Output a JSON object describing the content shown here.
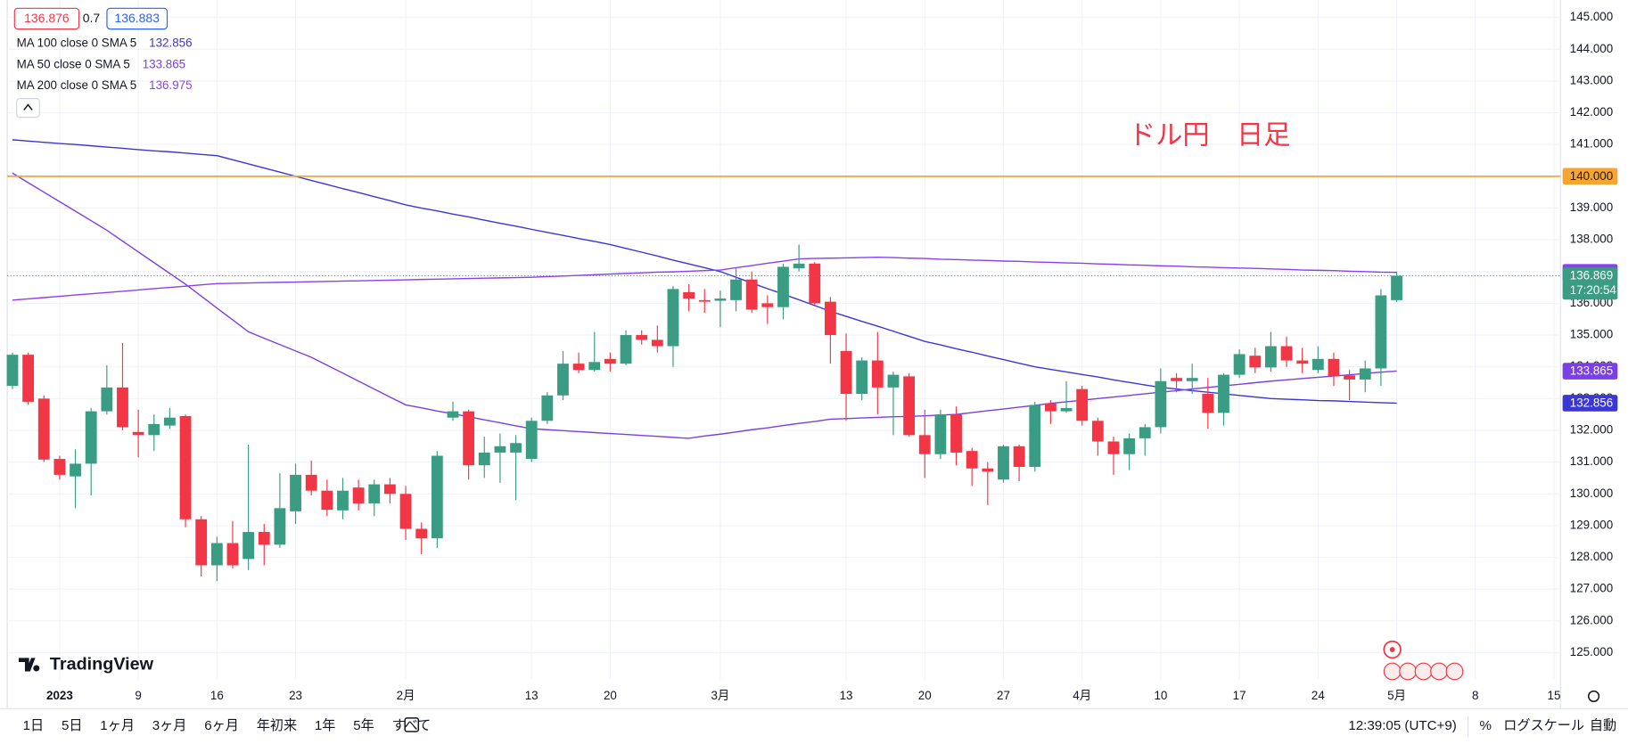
{
  "chart_data": {
    "type": "candlestick",
    "title": "ドル円　日足",
    "quote": {
      "bid": "136.876",
      "spread": "0.7",
      "ask": "136.883"
    },
    "categories": [
      null,
      null,
      null,
      "2023",
      null,
      null,
      null,
      null,
      "9",
      null,
      null,
      null,
      null,
      "16",
      null,
      null,
      null,
      null,
      "23",
      null,
      null,
      null,
      null,
      null,
      null,
      "2月",
      null,
      null,
      null,
      null,
      null,
      null,
      null,
      "13",
      null,
      null,
      null,
      null,
      "20",
      null,
      null,
      null,
      null,
      null,
      null,
      "3月",
      null,
      null,
      null,
      null,
      null,
      null,
      null,
      "13",
      null,
      null,
      null,
      null,
      "20",
      null,
      null,
      null,
      null,
      "27",
      null,
      null,
      null,
      null,
      "4月",
      null,
      null,
      null,
      null,
      "10",
      null,
      null,
      null,
      null,
      "17",
      null,
      null,
      null,
      null,
      "24",
      null,
      null,
      null,
      null,
      "5月",
      null,
      null,
      null,
      null,
      "8",
      null,
      null,
      null,
      null,
      "15"
    ],
    "open": [
      133.4,
      134.38,
      133.0,
      131.1,
      130.55,
      130.95,
      132.6,
      133.35,
      131.95,
      131.85,
      132.15,
      132.45,
      129.2,
      127.75,
      128.45,
      127.95,
      128.8,
      128.4,
      129.45,
      130.6,
      130.1,
      129.48,
      130.2,
      129.7,
      130.3,
      130.0,
      128.9,
      128.6,
      132.4,
      132.6,
      130.9,
      131.3,
      131.3,
      131.1,
      132.3,
      133.1,
      134.1,
      133.9,
      134.25,
      134.1,
      135.0,
      134.85,
      134.65,
      136.35,
      136.1,
      136.08,
      136.1,
      136.75,
      136.0,
      135.88,
      137.1,
      137.25,
      136.05,
      134.5,
      133.15,
      134.2,
      133.35,
      133.7,
      131.85,
      131.25,
      132.5,
      131.35,
      130.8,
      130.45,
      131.5,
      130.85,
      132.85,
      132.6,
      133.3,
      132.3,
      131.65,
      131.25,
      131.75,
      132.1,
      133.65,
      133.55,
      133.15,
      132.55,
      133.75,
      134.35,
      133.98,
      134.65,
      134.2,
      133.9,
      134.25,
      133.73,
      133.6,
      133.95,
      136.1,
      null,
      null,
      null,
      null,
      null,
      null,
      null,
      null,
      null,
      null
    ],
    "high": [
      134.45,
      134.45,
      133.1,
      131.2,
      131.4,
      132.7,
      134.05,
      134.75,
      132.65,
      132.5,
      132.7,
      132.5,
      129.3,
      128.65,
      129.15,
      131.55,
      129.05,
      130.65,
      130.95,
      131.05,
      130.45,
      130.5,
      130.45,
      130.45,
      130.5,
      130.25,
      129.1,
      131.35,
      132.9,
      132.65,
      131.8,
      131.9,
      131.85,
      132.4,
      133.2,
      134.5,
      134.45,
      135.1,
      134.45,
      135.15,
      135.15,
      135.3,
      136.55,
      136.6,
      136.45,
      136.4,
      137.1,
      137.0,
      136.25,
      137.25,
      137.85,
      137.3,
      136.2,
      135.05,
      134.3,
      135.1,
      133.85,
      133.8,
      132.65,
      132.65,
      132.75,
      131.45,
      131.0,
      131.55,
      131.55,
      132.9,
      132.95,
      133.55,
      133.4,
      132.4,
      131.8,
      131.9,
      132.2,
      133.95,
      133.8,
      134.1,
      133.65,
      133.8,
      134.55,
      134.6,
      135.1,
      134.95,
      134.6,
      134.65,
      134.45,
      133.9,
      134.2,
      136.45,
      137.0,
      null,
      null,
      null,
      null,
      null,
      null,
      null,
      null,
      null,
      null
    ],
    "low": [
      133.3,
      132.8,
      131.0,
      130.45,
      129.55,
      129.95,
      132.5,
      132.0,
      131.15,
      131.35,
      132.05,
      128.95,
      127.4,
      127.25,
      127.65,
      127.6,
      127.75,
      128.3,
      129.05,
      129.95,
      129.3,
      129.2,
      129.48,
      129.3,
      129.7,
      128.55,
      128.1,
      128.3,
      132.3,
      130.45,
      130.5,
      130.35,
      129.8,
      131.0,
      132.2,
      132.95,
      133.8,
      133.85,
      133.85,
      134.05,
      134.7,
      134.45,
      134.0,
      135.75,
      135.7,
      135.25,
      135.75,
      135.7,
      135.35,
      135.5,
      137.0,
      135.9,
      134.1,
      132.3,
      132.95,
      132.5,
      131.85,
      131.8,
      130.5,
      131.1,
      130.9,
      130.25,
      129.65,
      130.35,
      130.4,
      130.7,
      132.2,
      132.55,
      132.15,
      131.2,
      130.6,
      130.75,
      131.2,
      131.9,
      133.2,
      133.15,
      132.05,
      132.15,
      133.65,
      133.8,
      133.85,
      134.0,
      133.8,
      133.8,
      133.4,
      132.95,
      133.2,
      133.4,
      136.05,
      null,
      null,
      null,
      null,
      null,
      null,
      null,
      null,
      null,
      null
    ],
    "close": [
      134.38,
      132.9,
      131.08,
      130.6,
      130.95,
      132.6,
      133.35,
      132.1,
      131.85,
      132.2,
      132.4,
      129.2,
      127.75,
      128.45,
      127.75,
      128.8,
      128.4,
      129.55,
      130.6,
      130.1,
      129.5,
      130.1,
      129.7,
      130.3,
      130.0,
      128.9,
      128.6,
      131.2,
      132.6,
      130.9,
      131.3,
      131.5,
      131.6,
      132.3,
      133.1,
      134.1,
      133.9,
      134.15,
      134.1,
      135.0,
      134.85,
      134.65,
      136.45,
      136.15,
      136.05,
      136.15,
      136.75,
      135.8,
      135.88,
      137.15,
      137.25,
      136.0,
      135.0,
      133.15,
      134.2,
      133.35,
      133.75,
      131.85,
      131.25,
      132.5,
      131.3,
      130.8,
      130.7,
      131.5,
      130.85,
      132.8,
      132.6,
      132.7,
      132.3,
      131.65,
      131.25,
      131.75,
      132.1,
      133.55,
      133.55,
      133.65,
      132.55,
      133.75,
      134.4,
      133.98,
      134.65,
      134.2,
      134.1,
      134.25,
      133.7,
      133.6,
      133.95,
      136.25,
      136.869,
      null,
      null,
      null,
      null,
      null,
      null,
      null,
      null,
      null,
      null
    ],
    "up_color": "#3a9c82",
    "down_color": "#f23645",
    "series": [
      {
        "name": "MA 100 close 0 SMA 5",
        "color": "#3b36d6",
        "values": [
          141.15,
          141.11,
          141.07,
          141.03,
          141.0,
          140.96,
          140.92,
          140.88,
          140.84,
          140.8,
          140.77,
          140.73,
          140.69,
          140.65,
          140.52,
          140.39,
          140.26,
          140.13,
          140.0,
          139.87,
          139.74,
          139.61,
          139.49,
          139.36,
          139.23,
          139.1,
          139.0,
          138.91,
          138.81,
          138.72,
          138.62,
          138.52,
          138.43,
          138.33,
          138.23,
          138.14,
          138.04,
          137.95,
          137.85,
          137.73,
          137.61,
          137.49,
          137.36,
          137.24,
          137.12,
          137.0,
          136.82,
          136.64,
          136.46,
          136.29,
          136.11,
          135.93,
          135.75,
          135.59,
          135.43,
          135.28,
          135.12,
          134.96,
          134.8,
          134.69,
          134.57,
          134.46,
          134.34,
          134.23,
          134.11,
          134.0,
          133.92,
          133.84,
          133.76,
          133.68,
          133.59,
          133.51,
          133.43,
          133.35,
          133.3,
          133.25,
          133.2,
          133.15,
          133.1,
          133.05,
          133.0,
          132.98,
          132.96,
          132.94,
          132.93,
          132.91,
          132.89,
          132.87,
          132.856,
          null,
          null,
          null,
          null,
          null,
          null,
          null,
          null,
          null,
          null
        ]
      },
      {
        "name": "MA 50 close 0 SMA 5",
        "color": "#7b3fe4",
        "values": [
          140.1,
          139.8,
          139.5,
          139.2,
          138.9,
          138.6,
          138.3,
          137.96,
          137.62,
          137.28,
          136.94,
          136.6,
          136.23,
          135.85,
          135.48,
          135.1,
          134.9,
          134.7,
          134.5,
          134.3,
          134.05,
          133.8,
          133.55,
          133.3,
          133.05,
          132.8,
          132.71,
          132.61,
          132.52,
          132.43,
          132.33,
          132.24,
          132.14,
          132.05,
          132.02,
          131.99,
          131.96,
          131.93,
          131.9,
          131.87,
          131.84,
          131.81,
          131.78,
          131.75,
          131.82,
          131.88,
          131.95,
          132.02,
          132.08,
          132.15,
          132.22,
          132.28,
          132.35,
          132.37,
          132.39,
          132.41,
          132.43,
          132.44,
          132.46,
          132.48,
          132.5,
          132.56,
          132.62,
          132.67,
          132.73,
          132.79,
          132.85,
          132.9,
          132.95,
          133.0,
          133.05,
          133.1,
          133.15,
          133.2,
          133.25,
          133.3,
          133.35,
          133.4,
          133.45,
          133.5,
          133.55,
          133.59,
          133.63,
          133.67,
          133.71,
          133.75,
          133.79,
          133.83,
          133.865,
          null,
          null,
          null,
          null,
          null,
          null,
          null,
          null,
          null,
          null
        ]
      },
      {
        "name": "MA 200 close 0 SMA 5",
        "color": "#8c3ff0",
        "values": [
          136.1,
          136.14,
          136.18,
          136.22,
          136.26,
          136.3,
          136.34,
          136.38,
          136.42,
          136.46,
          136.5,
          136.54,
          136.58,
          136.62,
          136.63,
          136.64,
          136.65,
          136.66,
          136.67,
          136.68,
          136.69,
          136.7,
          136.71,
          136.72,
          136.73,
          136.74,
          136.75,
          136.76,
          136.77,
          136.78,
          136.79,
          136.8,
          136.81,
          136.82,
          136.84,
          136.86,
          136.88,
          136.9,
          136.92,
          136.94,
          136.96,
          136.98,
          136.99,
          137.01,
          137.03,
          137.05,
          137.12,
          137.19,
          137.26,
          137.33,
          137.4,
          137.41,
          137.42,
          137.43,
          137.44,
          137.45,
          137.44,
          137.42,
          137.41,
          137.39,
          137.38,
          137.36,
          137.35,
          137.33,
          137.32,
          137.3,
          137.29,
          137.27,
          137.26,
          137.24,
          137.23,
          137.21,
          137.2,
          137.18,
          137.17,
          137.15,
          137.14,
          137.12,
          137.11,
          137.1,
          137.08,
          137.07,
          137.05,
          137.04,
          137.03,
          137.01,
          137.0,
          136.98,
          136.975,
          null,
          null,
          null,
          null,
          null,
          null,
          null,
          null,
          null,
          null
        ]
      }
    ],
    "hline": {
      "value": 140,
      "label": "140.000",
      "color": "#f7a531"
    },
    "last_price": {
      "value": 136.869,
      "countdown": "17:20:54"
    },
    "ylim": [
      124.15,
      145.55
    ],
    "yticks": [
      {
        "value": 125,
        "label": "125.000"
      },
      {
        "value": 126,
        "label": "126.000"
      },
      {
        "value": 127,
        "label": "127.000"
      },
      {
        "value": 128,
        "label": "128.000"
      },
      {
        "value": 129,
        "label": "129.000"
      },
      {
        "value": 130,
        "label": "130.000"
      },
      {
        "value": 131,
        "label": "131.000"
      },
      {
        "value": 132,
        "label": "132.000"
      },
      {
        "value": 133,
        "label": "133.000"
      },
      {
        "value": 134,
        "label": "134.000"
      },
      {
        "value": 135,
        "label": "135.000"
      },
      {
        "value": 136,
        "label": "136.000"
      },
      {
        "value": 137,
        "label": "137.000"
      },
      {
        "value": 138,
        "label": "138.000"
      },
      {
        "value": 139,
        "label": "139.000"
      },
      {
        "value": 140,
        "label": "140.000"
      },
      {
        "value": 141,
        "label": "141.000"
      },
      {
        "value": 142,
        "label": "142.000"
      },
      {
        "value": 143,
        "label": "143.000"
      },
      {
        "value": 144,
        "label": "144.000"
      },
      {
        "value": 145,
        "label": "145.000"
      }
    ],
    "grid": true
  },
  "logo": "TradingView",
  "toolbar": {
    "ranges": [
      "1日",
      "5日",
      "1ヶ月",
      "3ヶ月",
      "6ヶ月",
      "年初来",
      "1年",
      "5年",
      "すべて"
    ],
    "clock": "12:39:05 (UTC+9)",
    "percent": "%",
    "log": "ログスケール",
    "auto": "自動"
  }
}
